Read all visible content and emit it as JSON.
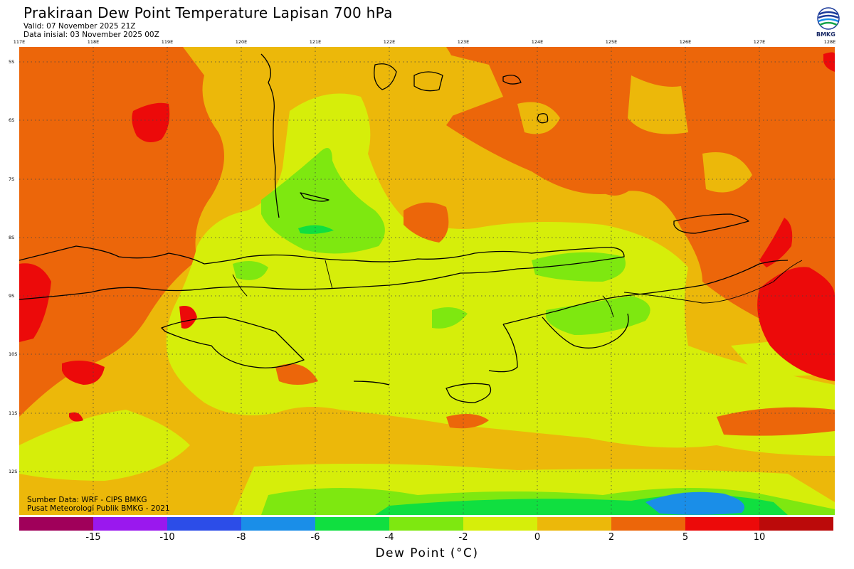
{
  "header": {
    "title": "Prakiraan Dew Point Temperature Lapisan 700 hPa",
    "valid": "Valid: 07 November 2025 21Z",
    "initial": "Data inisial: 03 November 2025 00Z",
    "logo_text": "BMKG"
  },
  "map": {
    "lon_labels": [
      "117E",
      "118E",
      "119E",
      "120E",
      "121E",
      "122E",
      "123E",
      "124E",
      "125E",
      "126E",
      "127E",
      "128E"
    ],
    "lat_labels": [
      "5S",
      "6S",
      "7S",
      "8S",
      "9S",
      "10S",
      "11S",
      "12S"
    ],
    "credits": [
      "Sumber Data: WRF - CIPS BMKG",
      "Pusat Meteorologi Publik BMKG - 2021"
    ]
  },
  "colorbar": {
    "colors": [
      "#a0005a",
      "#9a18ee",
      "#2c4de8",
      "#1a8ee8",
      "#10df40",
      "#7ee810",
      "#d6ee0a",
      "#ecb80a",
      "#ec660a",
      "#ec0a0a",
      "#bb0a0a"
    ],
    "ticks": [
      "-15",
      "-10",
      "-8",
      "-6",
      "-4",
      "-2",
      "0",
      "2",
      "5",
      "10"
    ],
    "label": "Dew Point (°C)"
  }
}
